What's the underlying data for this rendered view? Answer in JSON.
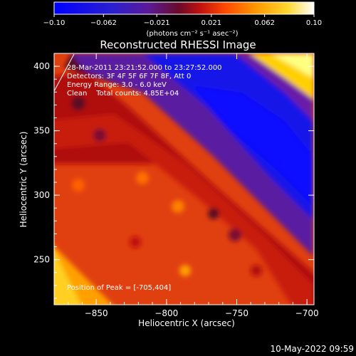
{
  "chart_data": {
    "type": "heatmap",
    "title": "Reconstructed RHESSI Image",
    "xlabel": "Heliocentric X (arcsec)",
    "ylabel": "Heliocentric Y (arcsec)",
    "xlim": [
      -880,
      -695
    ],
    "ylim": [
      215,
      410
    ],
    "xticks": [
      -850,
      -800,
      -750,
      -700
    ],
    "yticks": [
      250,
      300,
      350,
      400
    ],
    "colorbar": {
      "min": -0.1,
      "max": 0.1,
      "ticks": [
        "-0.10",
        "-0.062",
        "-0.021",
        "0.021",
        "0.062",
        "0.10"
      ],
      "label": "(photons cm⁻² s⁻¹ asec⁻²)",
      "colormap": [
        "#0000ff",
        "#1818dd",
        "#3a1fb8",
        "#5a1a9a",
        "#7a1460",
        "#8a0a1a",
        "#c01010",
        "#e02a0a",
        "#ff5a00",
        "#ff9000",
        "#ffc010",
        "#fff060",
        "#ffffff"
      ]
    },
    "annotations": [
      "28-Mar-2011 23:21:52.000 to 23:27:52.000",
      "Detectors: 3F 4F 5F 6F 7F 8F, Att 0",
      "Energy Range: 3.0 - 6.0 keV",
      "Clean    Total counts: 4.85E+04"
    ],
    "peak": "Position of Peak = [-705,404]",
    "peak_xy": [
      -705,
      404
    ]
  },
  "footer_date": "10-May-2022 09:59"
}
